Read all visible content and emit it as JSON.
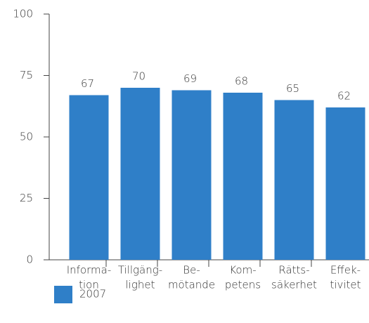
{
  "chart_data": {
    "type": "bar",
    "categories": [
      [
        "Informa-",
        "tion"
      ],
      [
        "Tillgäng-",
        "lighet"
      ],
      [
        "Be-",
        "mötande"
      ],
      [
        "Kom-",
        "petens"
      ],
      [
        "Rätts-",
        "säkerhet"
      ],
      [
        "Effek-",
        "tivitet"
      ]
    ],
    "series": [
      {
        "name": "2007",
        "color": "#2f7fc8",
        "values": [
          67,
          70,
          69,
          68,
          65,
          62
        ]
      }
    ],
    "ylim": [
      0,
      100
    ],
    "yticks": [
      0,
      25,
      50,
      75,
      100
    ],
    "grid": false,
    "legend": "bottom-left"
  }
}
